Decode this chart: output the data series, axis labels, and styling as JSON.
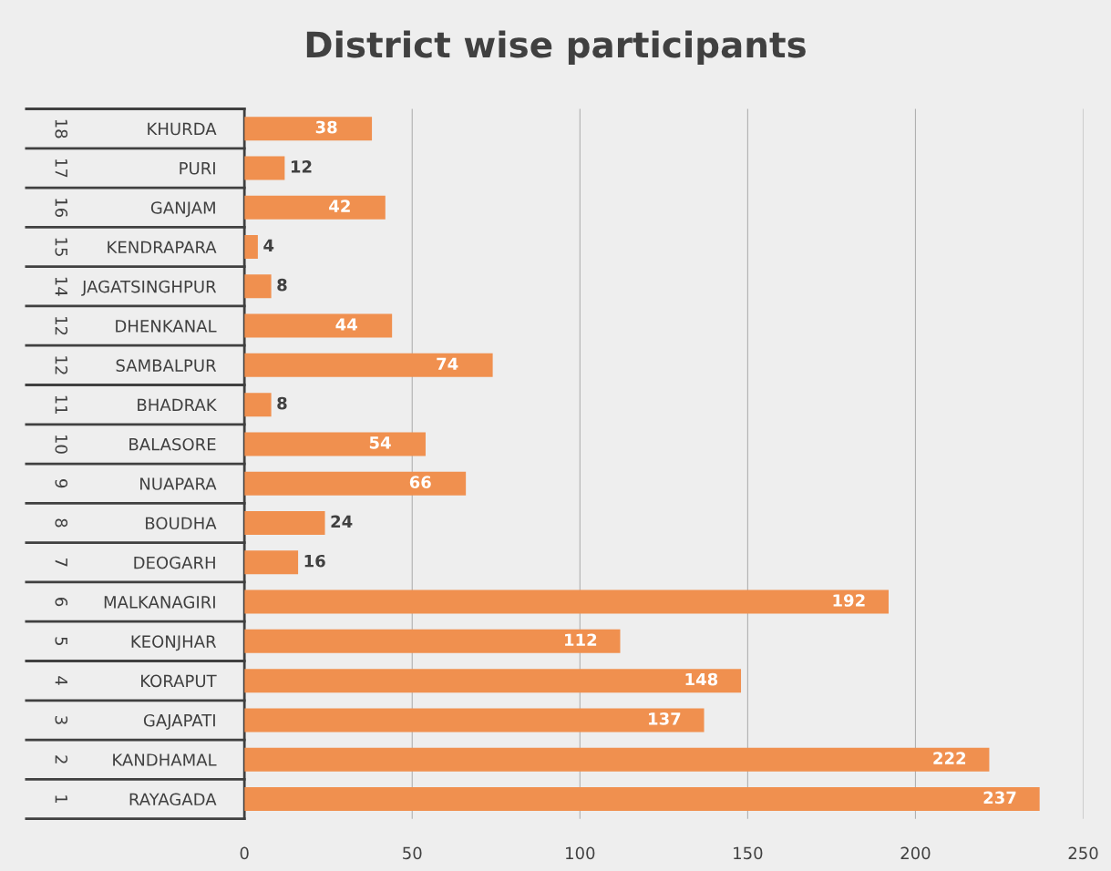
{
  "chart_data": {
    "type": "bar",
    "orientation": "horizontal",
    "title": "District wise participants",
    "categories": [
      "KHURDA",
      "PURI",
      "GANJAM",
      "KENDRAPARA",
      "JAGATSINGHPUR",
      "DHENKANAL",
      "SAMBALPUR",
      "BHADRAK",
      "BALASORE",
      "NUAPARA",
      "BOUDHA",
      "DEOGARH",
      "MALKANAGIRI",
      "KEONJHAR",
      "KORAPUT",
      "GAJAPATI",
      "KANDHAMAL",
      "RAYAGADA"
    ],
    "values": [
      38,
      12,
      42,
      4,
      8,
      44,
      74,
      8,
      54,
      66,
      24,
      16,
      192,
      112,
      148,
      137,
      222,
      237
    ],
    "color": "#f0904f",
    "xlim": [
      0,
      250
    ],
    "xticks": [
      0,
      50,
      100,
      150,
      200,
      250
    ],
    "grid": "x",
    "data_labels": true,
    "annotations": [
      "18",
      "17",
      "16",
      "15",
      "14",
      "12",
      "12",
      "11",
      "10",
      "9",
      "8",
      "7",
      "6",
      "5",
      "4",
      "3",
      "2",
      "1"
    ]
  }
}
